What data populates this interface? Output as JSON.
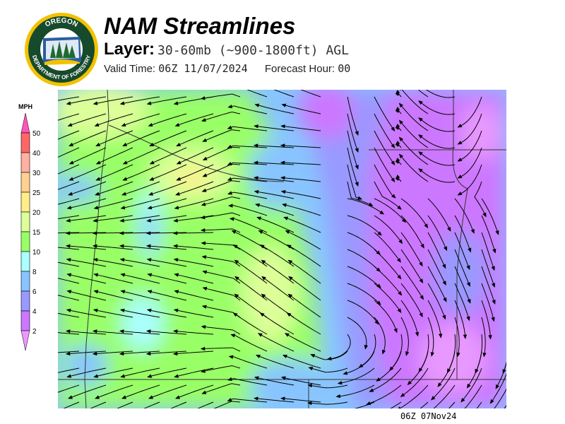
{
  "header": {
    "title": "NAM Streamlines",
    "layer_label": "Layer:",
    "layer_value": "30-60mb (~900-1800ft) AGL",
    "valid_time_label": "Valid Time:",
    "valid_time": "06Z 11/07/2024",
    "forecast_hour_label": "Forecast Hour:",
    "forecast_hour": "00"
  },
  "logo": {
    "text_top": "OREGON",
    "text_bottom": "DEPARTMENT OF FORESTRY"
  },
  "legend": {
    "unit": "MPH",
    "labels": [
      "50",
      "40",
      "30",
      "25",
      "20",
      "15",
      "10",
      "8",
      "6",
      "4",
      "2"
    ],
    "colors": [
      "#ff6666",
      "#ffb0a0",
      "#ffd090",
      "#ffee88",
      "#ddff99",
      "#99ff66",
      "#aaffff",
      "#88c4ff",
      "#9999ff",
      "#cc77ff"
    ],
    "top_arrow_color": "#ff55bb",
    "bottom_arrow_color": "#e899ff"
  },
  "map": {
    "footer_time": "06Z 07Nov24"
  }
}
